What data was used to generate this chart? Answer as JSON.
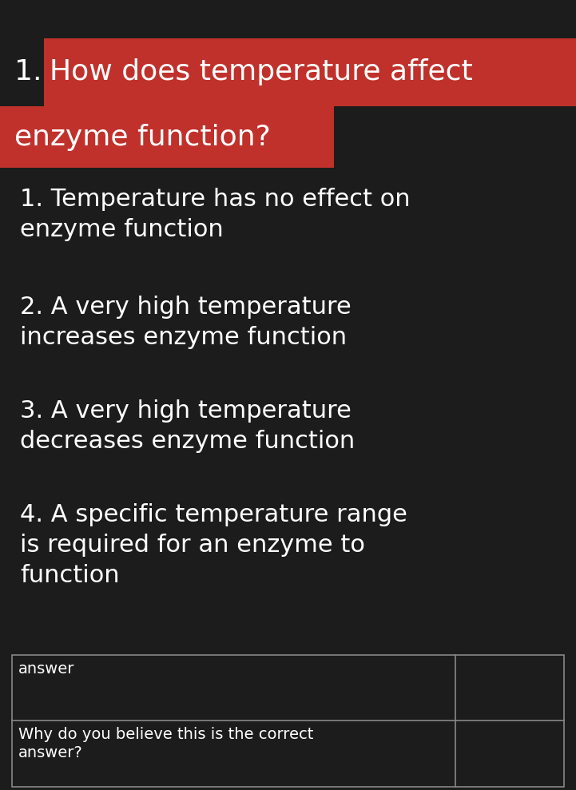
{
  "background_color": "#1c1c1c",
  "fig_width": 7.21,
  "fig_height": 9.89,
  "question_number": "1.",
  "question_highlighted_line1": "How does temperature affect",
  "question_highlighted_line2": "enzyme function?",
  "highlight_color": "#c0312b",
  "question_text_color": "#ffffff",
  "question_number_color": "#ffffff",
  "options": [
    "1. Temperature has no effect on\nenzyme function",
    "2. A very high temperature\nincreases enzyme function",
    "3. A very high temperature\ndecreases enzyme function",
    "4. A specific temperature range\nis required for an enzyme to\nfunction"
  ],
  "options_color": "#ffffff",
  "table_rows": [
    "answer",
    "Why do you believe this is the correct\nanswer?"
  ],
  "table_text_color": "#ffffff",
  "table_border_color": "#888888",
  "table_bg_color": "#1c1c1c",
  "option_fontsize": 22,
  "question_fontsize": 26,
  "table_fontsize": 14
}
